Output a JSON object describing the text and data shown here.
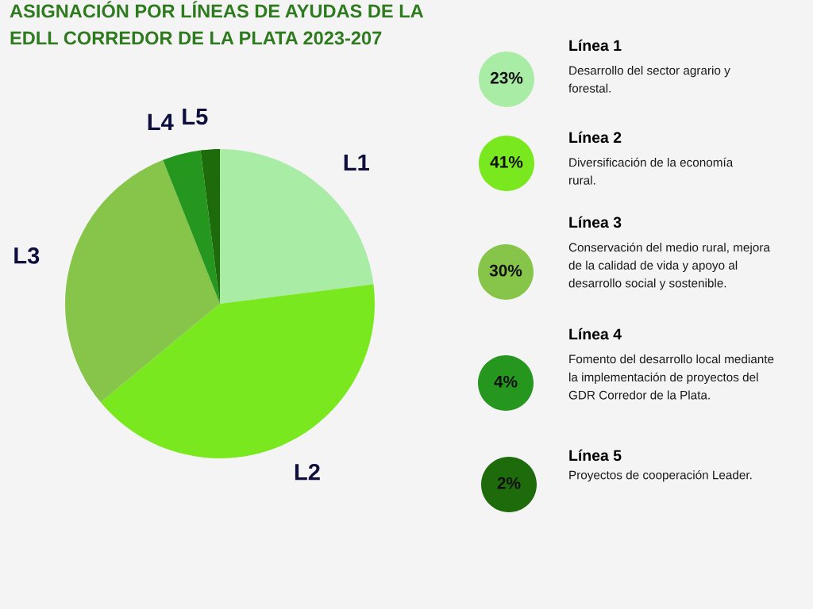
{
  "chart_data": {
    "type": "pie",
    "title": "ASIGNACIÓN POR LÍNEAS DE AYUDAS DE LA\nEDLL CORREDOR DE LA PLATA 2023-207",
    "categories": [
      "L1",
      "L2",
      "L3",
      "L4",
      "L5"
    ],
    "values": [
      23,
      41,
      30,
      4,
      2
    ],
    "colors": [
      "#a9eca5",
      "#7ae81e",
      "#86c54a",
      "#25971f",
      "#1e6b0c"
    ],
    "annotations": [
      "23%",
      "Línea 1",
      "Desarrollo del sector agrario y\nforestal.",
      "41%",
      "Línea 2",
      "Diversificación de la economía\nrural.",
      "30%",
      "Línea 3",
      "Conservación del medio rural, mejora\nde la calidad de vida y apoyo al\ndesarrollo social y sostenible.",
      "4%",
      "Línea 4",
      "Fomento del desarrollo local mediante\nla implementación de proyectos del\nGDR Corredor de la Plata.",
      "2%",
      "Línea 5",
      "Proyectos de cooperación Leader."
    ]
  }
}
